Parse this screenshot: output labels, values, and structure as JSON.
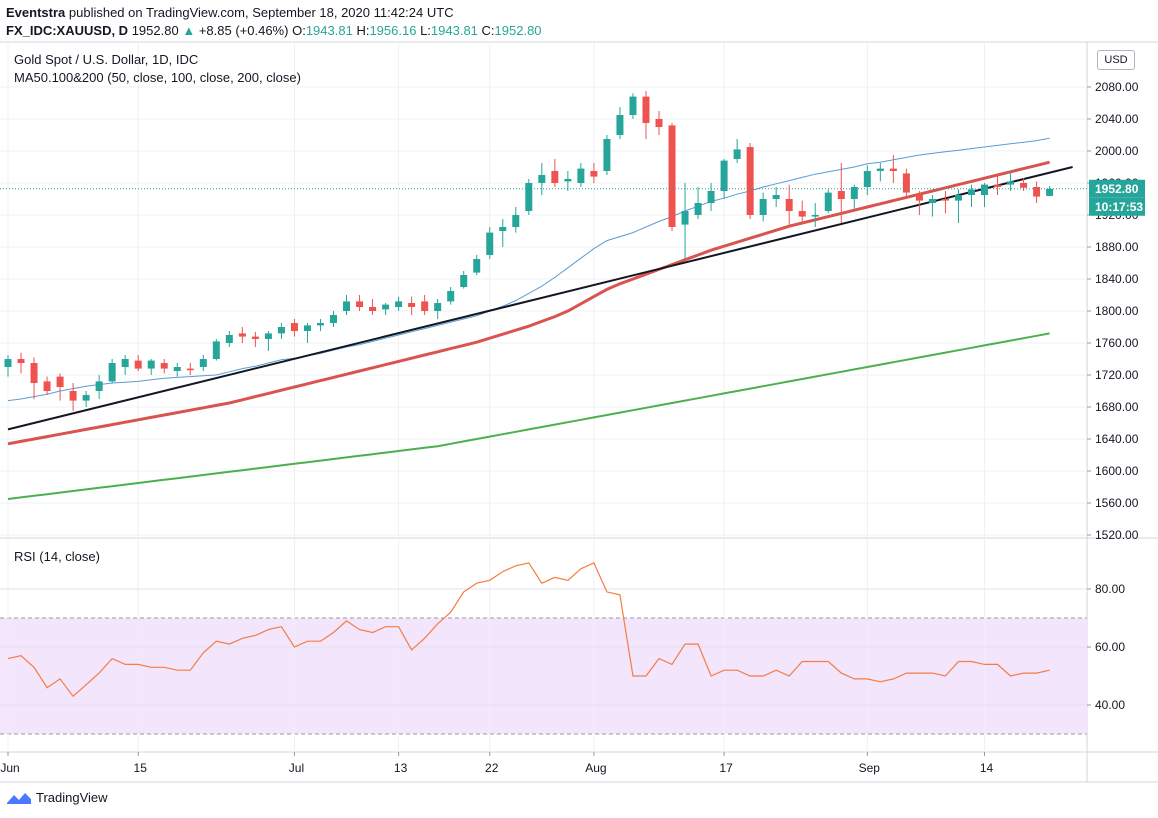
{
  "header": {
    "publisher": "Eventstra",
    "published_text": "published on TradingView.com, September 18, 2020 11:42:24 UTC",
    "symbol": "FX_IDC:XAUUSD, D",
    "last": "1952.80",
    "change": "+8.85 (+0.46%)",
    "o_label": "O:",
    "o": "1943.81",
    "h_label": "H:",
    "h": "1956.16",
    "l_label": "L:",
    "l": "1943.81",
    "c_label": "C:",
    "c": "1952.80"
  },
  "main_title": "Gold Spot / U.S. Dollar, 1D, IDC",
  "ma_legend": "MA50.100&200 (50, close, 100, close, 200, close)",
  "rsi_title": "RSI (14, close)",
  "currency": "USD",
  "price_label": "1952.80",
  "countdown_label": "10:17:53",
  "footer": {
    "brand": "TradingView"
  },
  "colors": {
    "up": "#26a69a",
    "down": "#ef5350",
    "ma50": "#5b9bd5",
    "ma100": "#d9534f",
    "ma200": "#4caf50",
    "rsi": "#f57c42",
    "rsi_band": "#f3e5fc",
    "trend": "#131722"
  },
  "chart_data": [
    {
      "type": "candlestick",
      "title": "Gold Spot / U.S. Dollar, 1D, IDC",
      "ylim": [
        1520,
        2120
      ],
      "y_ticks": [
        1520,
        1560,
        1600,
        1640,
        1680,
        1720,
        1760,
        1800,
        1840,
        1880,
        1920,
        1960,
        2000,
        2040,
        2080
      ],
      "x_tick_labels": [
        {
          "label": "Jun",
          "index": 0
        },
        {
          "label": "15",
          "index": 10
        },
        {
          "label": "Jul",
          "index": 22
        },
        {
          "label": "13",
          "index": 30
        },
        {
          "label": "22",
          "index": 37
        },
        {
          "label": "Aug",
          "index": 45
        },
        {
          "label": "17",
          "index": 55
        },
        {
          "label": "Sep",
          "index": 66
        },
        {
          "label": "14",
          "index": 75
        }
      ],
      "ohlc": [
        [
          1730,
          1745,
          1718,
          1740
        ],
        [
          1740,
          1748,
          1722,
          1735
        ],
        [
          1735,
          1742,
          1690,
          1710
        ],
        [
          1712,
          1718,
          1695,
          1700
        ],
        [
          1718,
          1722,
          1688,
          1705
        ],
        [
          1700,
          1710,
          1675,
          1688
        ],
        [
          1688,
          1700,
          1680,
          1695
        ],
        [
          1700,
          1720,
          1690,
          1712
        ],
        [
          1712,
          1740,
          1710,
          1735
        ],
        [
          1730,
          1745,
          1720,
          1740
        ],
        [
          1738,
          1745,
          1725,
          1728
        ],
        [
          1728,
          1740,
          1720,
          1738
        ],
        [
          1735,
          1740,
          1722,
          1728
        ],
        [
          1725,
          1735,
          1718,
          1730
        ],
        [
          1728,
          1735,
          1720,
          1726
        ],
        [
          1730,
          1745,
          1725,
          1740
        ],
        [
          1740,
          1765,
          1738,
          1762
        ],
        [
          1760,
          1775,
          1755,
          1770
        ],
        [
          1772,
          1780,
          1760,
          1768
        ],
        [
          1768,
          1774,
          1755,
          1765
        ],
        [
          1765,
          1775,
          1750,
          1772
        ],
        [
          1772,
          1785,
          1765,
          1780
        ],
        [
          1785,
          1790,
          1768,
          1775
        ],
        [
          1775,
          1785,
          1760,
          1782
        ],
        [
          1782,
          1790,
          1775,
          1785
        ],
        [
          1785,
          1800,
          1780,
          1795
        ],
        [
          1800,
          1820,
          1795,
          1812
        ],
        [
          1812,
          1820,
          1800,
          1805
        ],
        [
          1805,
          1815,
          1795,
          1800
        ],
        [
          1802,
          1810,
          1795,
          1808
        ],
        [
          1805,
          1818,
          1800,
          1812
        ],
        [
          1810,
          1818,
          1795,
          1805
        ],
        [
          1812,
          1820,
          1795,
          1800
        ],
        [
          1800,
          1815,
          1790,
          1810
        ],
        [
          1812,
          1830,
          1808,
          1825
        ],
        [
          1830,
          1850,
          1828,
          1845
        ],
        [
          1848,
          1870,
          1845,
          1865
        ],
        [
          1870,
          1905,
          1865,
          1898
        ],
        [
          1900,
          1915,
          1880,
          1905
        ],
        [
          1905,
          1930,
          1898,
          1920
        ],
        [
          1925,
          1965,
          1920,
          1960
        ],
        [
          1960,
          1985,
          1945,
          1970
        ],
        [
          1975,
          1990,
          1955,
          1960
        ],
        [
          1962,
          1975,
          1950,
          1965
        ],
        [
          1960,
          1985,
          1955,
          1978
        ],
        [
          1975,
          1985,
          1960,
          1968
        ],
        [
          1975,
          2020,
          1970,
          2015
        ],
        [
          2020,
          2055,
          2015,
          2045
        ],
        [
          2045,
          2072,
          2040,
          2068
        ],
        [
          2068,
          2075,
          2015,
          2035
        ],
        [
          2040,
          2050,
          2020,
          2030
        ],
        [
          2032,
          2035,
          1900,
          1905
        ],
        [
          1908,
          1960,
          1865,
          1925
        ],
        [
          1920,
          1955,
          1915,
          1935
        ],
        [
          1935,
          1960,
          1925,
          1950
        ],
        [
          1950,
          1990,
          1940,
          1988
        ],
        [
          1990,
          2015,
          1985,
          2002
        ],
        [
          2005,
          2010,
          1915,
          1920
        ],
        [
          1920,
          1948,
          1912,
          1940
        ],
        [
          1940,
          1955,
          1930,
          1945
        ],
        [
          1940,
          1958,
          1905,
          1925
        ],
        [
          1925,
          1938,
          1912,
          1918
        ],
        [
          1918,
          1935,
          1905,
          1920
        ],
        [
          1925,
          1952,
          1922,
          1948
        ],
        [
          1950,
          1985,
          1910,
          1940
        ],
        [
          1940,
          1958,
          1928,
          1955
        ],
        [
          1955,
          1982,
          1945,
          1975
        ],
        [
          1975,
          1985,
          1962,
          1978
        ],
        [
          1978,
          1995,
          1960,
          1975
        ],
        [
          1972,
          1978,
          1940,
          1948
        ],
        [
          1945,
          1950,
          1920,
          1938
        ],
        [
          1935,
          1945,
          1918,
          1940
        ],
        [
          1940,
          1950,
          1922,
          1938
        ],
        [
          1938,
          1952,
          1910,
          1945
        ],
        [
          1945,
          1958,
          1930,
          1952
        ],
        [
          1945,
          1960,
          1930,
          1958
        ],
        [
          1958,
          1970,
          1945,
          1955
        ],
        [
          1958,
          1975,
          1950,
          1962
        ],
        [
          1960,
          1966,
          1950,
          1954
        ],
        [
          1955,
          1962,
          1935,
          1943
        ],
        [
          1943.81,
          1956.16,
          1943.81,
          1952.8
        ]
      ],
      "ma50": [
        1688,
        1690,
        1693,
        1696,
        1700,
        1703,
        1706,
        1708,
        1710,
        1711,
        1712,
        1714,
        1716,
        1717,
        1718,
        1719,
        1720,
        1724,
        1728,
        1731,
        1735,
        1739,
        1741,
        1744,
        1747,
        1751,
        1755,
        1758,
        1762,
        1766,
        1770,
        1774,
        1778,
        1782,
        1786,
        1790,
        1794,
        1800,
        1806,
        1813,
        1822,
        1831,
        1842,
        1854,
        1866,
        1878,
        1888,
        1893,
        1898,
        1905,
        1912,
        1918,
        1925,
        1931,
        1937,
        1941,
        1946,
        1950,
        1955,
        1959,
        1963,
        1967,
        1971,
        1974,
        1977,
        1980,
        1984,
        1986,
        1989,
        1992,
        1995,
        1997,
        1999,
        2001,
        2003,
        2005,
        2007,
        2009,
        2011,
        2013,
        2016
      ],
      "ma100": [
        1634,
        1637,
        1640,
        1643,
        1646,
        1649,
        1652,
        1655,
        1658,
        1661,
        1664,
        1667,
        1670,
        1673,
        1676,
        1679,
        1682,
        1685,
        1689,
        1693,
        1697,
        1701,
        1705,
        1709,
        1713,
        1717,
        1721,
        1725,
        1729,
        1733,
        1737,
        1741,
        1745,
        1749,
        1753,
        1757,
        1761,
        1766,
        1771,
        1776,
        1781,
        1787,
        1793,
        1800,
        1809,
        1818,
        1827,
        1834,
        1840,
        1846,
        1852,
        1858,
        1864,
        1870,
        1876,
        1881,
        1886,
        1891,
        1896,
        1901,
        1906,
        1910,
        1914,
        1918,
        1922,
        1926,
        1930,
        1934,
        1938,
        1942,
        1946,
        1950,
        1954,
        1958,
        1962,
        1966,
        1970,
        1974,
        1978,
        1982,
        1986
      ],
      "ma200": [
        1565,
        1567,
        1569,
        1571,
        1573,
        1575,
        1577,
        1579,
        1581,
        1583,
        1585,
        1587,
        1589,
        1591,
        1593,
        1595,
        1597,
        1599,
        1601,
        1603,
        1605,
        1607,
        1609,
        1611,
        1613,
        1615,
        1617,
        1619,
        1621,
        1623,
        1625,
        1627,
        1629,
        1631,
        1634,
        1637,
        1640,
        1643,
        1646,
        1649,
        1652,
        1655,
        1658,
        1661,
        1664,
        1667,
        1670,
        1673,
        1676,
        1679,
        1682,
        1685,
        1688,
        1691,
        1694,
        1697,
        1700,
        1703,
        1706,
        1709,
        1712,
        1715,
        1718,
        1721,
        1724,
        1727,
        1730,
        1733,
        1736,
        1739,
        1742,
        1745,
        1748,
        1751,
        1754,
        1757,
        1760,
        1763,
        1766,
        1769,
        1772
      ],
      "trendline": [
        {
          "index": 0,
          "price": 1652
        },
        {
          "index": 81,
          "price": 1975
        }
      ]
    },
    {
      "type": "line",
      "title": "RSI (14, close)",
      "ylim": [
        30,
        90
      ],
      "y_ticks": [
        40,
        60,
        80
      ],
      "band": [
        30,
        70
      ],
      "values": [
        56,
        57,
        53,
        46,
        49,
        43,
        47,
        51,
        56,
        54,
        54,
        53,
        53,
        52,
        52,
        58,
        62,
        61,
        63,
        64,
        66,
        67,
        60,
        62,
        62,
        65,
        69,
        66,
        65,
        67,
        67,
        59,
        63,
        68,
        72,
        79,
        82,
        83,
        86,
        88,
        89,
        82,
        84,
        83,
        87,
        89,
        79,
        78,
        50,
        50,
        56,
        54,
        61,
        61,
        50,
        52,
        52,
        50,
        50,
        52,
        50,
        55,
        55,
        55,
        51,
        49,
        49,
        48,
        49,
        51,
        51,
        51,
        50,
        55,
        55,
        54,
        54,
        50,
        51,
        51,
        52
      ]
    }
  ]
}
